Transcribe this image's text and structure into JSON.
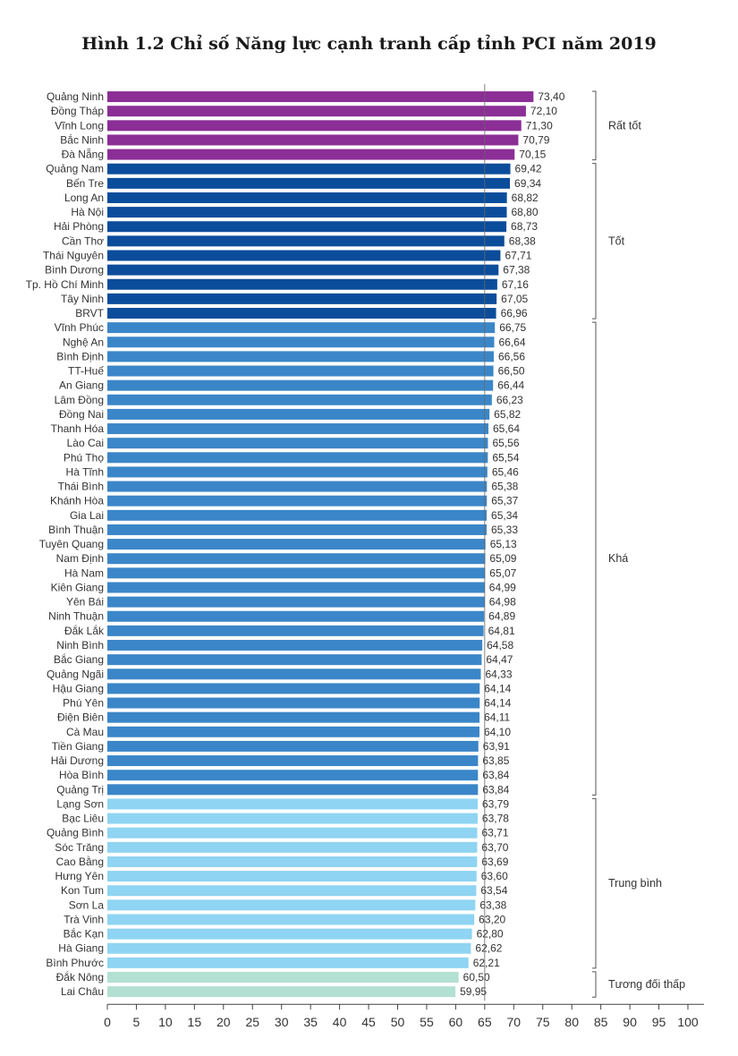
{
  "title": "Hình 1.2 Chỉ số Năng lực cạnh tranh cấp tỉnh PCI năm 2019",
  "chart_data": {
    "type": "bar",
    "orientation": "horizontal",
    "title": "Hình 1.2 Chỉ số Năng lực cạnh tranh cấp tỉnh PCI năm 2019",
    "xlim": [
      0,
      100
    ],
    "xticks": [
      0,
      5,
      10,
      15,
      20,
      25,
      30,
      35,
      40,
      45,
      50,
      55,
      60,
      65,
      70,
      75,
      80,
      85,
      90,
      95,
      100
    ],
    "reference_line": 65,
    "categories": [
      "Quảng Ninh",
      "Đồng Tháp",
      "Vĩnh Long",
      "Bắc Ninh",
      "Đà Nẵng",
      "Quảng Nam",
      "Bến Tre",
      "Long An",
      "Hà Nội",
      "Hải Phòng",
      "Cần Thơ",
      "Thái Nguyên",
      "Bình Dương",
      "Tp. Hồ Chí Minh",
      "Tây Ninh",
      "BRVT",
      "Vĩnh Phúc",
      "Nghệ An",
      "Bình Định",
      "TT-Huế",
      "An Giang",
      "Lâm Đồng",
      "Đồng Nai",
      "Thanh Hóa",
      "Lào Cai",
      "Phú Thọ",
      "Hà Tĩnh",
      "Thái Bình",
      "Khánh Hòa",
      "Gia Lai",
      "Bình Thuận",
      "Tuyên Quang",
      "Nam Định",
      "Hà Nam",
      "Kiên Giang",
      "Yên Bái",
      "Ninh Thuận",
      "Đắk Lắk",
      "Ninh Bình",
      "Bắc Giang",
      "Quảng Ngãi",
      "Hậu Giang",
      "Phú Yên",
      "Điện Biên",
      "Cà Mau",
      "Tiền Giang",
      "Hải Dương",
      "Hòa Bình",
      "Quảng Trị",
      "Lạng Sơn",
      "Bạc Liêu",
      "Quảng Bình",
      "Sóc Trăng",
      "Cao Bằng",
      "Hưng Yên",
      "Kon Tum",
      "Sơn La",
      "Trà Vinh",
      "Bắc Kạn",
      "Hà Giang",
      "Bình Phước",
      "Đắk Nông",
      "Lai Châu"
    ],
    "values": [
      73.4,
      72.1,
      71.3,
      70.79,
      70.15,
      69.42,
      69.34,
      68.82,
      68.8,
      68.73,
      68.38,
      67.71,
      67.38,
      67.16,
      67.05,
      66.96,
      66.75,
      66.64,
      66.56,
      66.5,
      66.44,
      66.23,
      65.82,
      65.64,
      65.56,
      65.54,
      65.46,
      65.38,
      65.37,
      65.34,
      65.33,
      65.13,
      65.09,
      65.07,
      64.99,
      64.98,
      64.89,
      64.81,
      64.58,
      64.47,
      64.33,
      64.14,
      64.14,
      64.11,
      64.1,
      63.91,
      63.85,
      63.84,
      63.84,
      63.79,
      63.78,
      63.71,
      63.7,
      63.69,
      63.6,
      63.54,
      63.38,
      63.2,
      62.8,
      62.62,
      62.21,
      60.5,
      59.95
    ],
    "value_labels": [
      "73,40",
      "72,10",
      "71,30",
      "70,79",
      "70,15",
      "69,42",
      "69,34",
      "68,82",
      "68,80",
      "68,73",
      "68,38",
      "67,71",
      "67,38",
      "67,16",
      "67,05",
      "66,96",
      "66,75",
      "66,64",
      "66,56",
      "66,50",
      "66,44",
      "66,23",
      "65,82",
      "65,64",
      "65,56",
      "65,54",
      "65,46",
      "65,38",
      "65,37",
      "65,34",
      "65,33",
      "65,13",
      "65,09",
      "65,07",
      "64,99",
      "64,98",
      "64,89",
      "64,81",
      "64,58",
      "64,47",
      "64,33",
      "64,14",
      "64,14",
      "64,11",
      "64,10",
      "63,91",
      "63,85",
      "63,84",
      "63,84",
      "63,79",
      "63,78",
      "63,71",
      "63,70",
      "63,69",
      "63,60",
      "63,54",
      "63,38",
      "63,20",
      "62,80",
      "62,62",
      "62,21",
      "60,50",
      "59,95"
    ],
    "groups": [
      {
        "name": "Rất tốt",
        "start": 0,
        "end": 4,
        "color": "#8b2e96"
      },
      {
        "name": "Tốt",
        "start": 5,
        "end": 15,
        "color": "#0b4d9b"
      },
      {
        "name": "Khá",
        "start": 16,
        "end": 48,
        "color": "#3b86c8"
      },
      {
        "name": "Trung bình",
        "start": 49,
        "end": 60,
        "color": "#8fd4f2"
      },
      {
        "name": "Tương đối thấp",
        "start": 61,
        "end": 62,
        "color": "#b2e0d2"
      }
    ],
    "grid": false
  }
}
